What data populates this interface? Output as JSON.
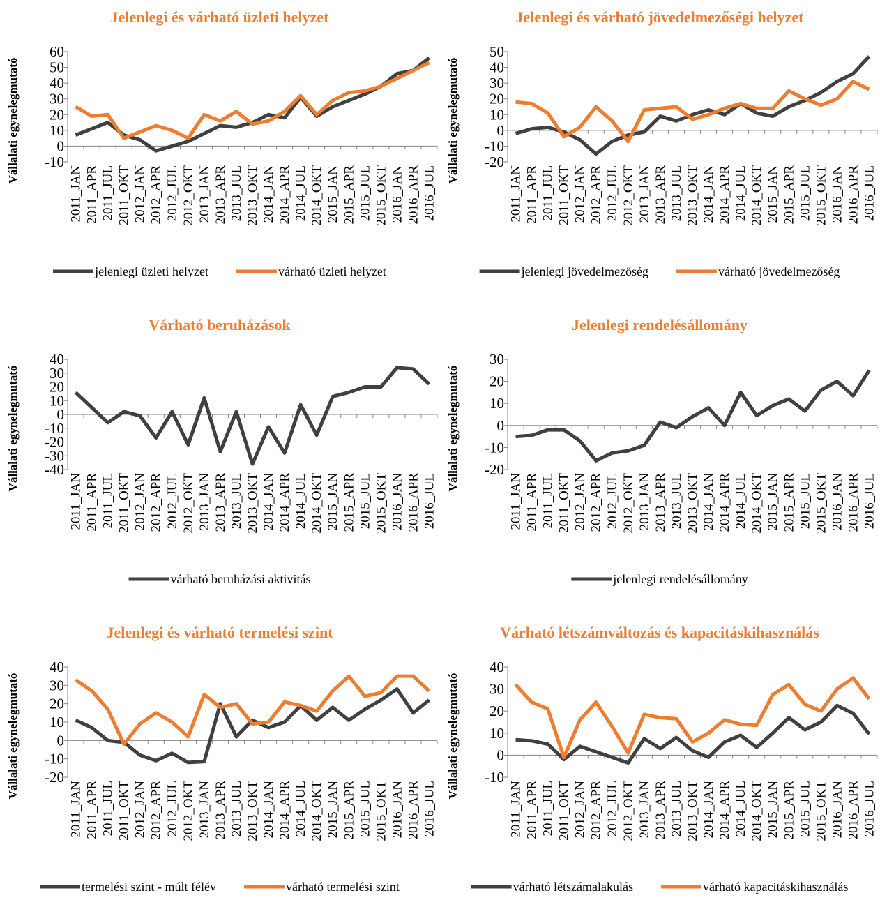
{
  "chart_data": [
    {
      "type": "line",
      "title": "Jelenlegi és várható üzleti helyzet",
      "y_label": "Vállalati egynelegmutató",
      "categories": [
        "2011_JAN",
        "2011_APR",
        "2011_JUL",
        "2011_OKT",
        "2012_JAN",
        "2012_APR",
        "2012_JUL",
        "2012_OKT",
        "2013_JAN",
        "2013_APR",
        "2013_JUL",
        "2013_OKT",
        "2014_JAN",
        "2014_APR",
        "2014_JUL",
        "2014_OKT",
        "2015_JAN",
        "2015_APR",
        "2015_JUL",
        "2015_OKT",
        "2016_JAN",
        "2016_APR",
        "2016_JUL"
      ],
      "series": [
        {
          "name": "jelenlegi üzleti helyzet",
          "color": "#404040",
          "values": [
            7,
            11,
            15,
            7,
            4,
            -3,
            0,
            3,
            8,
            13,
            12,
            15,
            20,
            18,
            31,
            19,
            25,
            29,
            33,
            38,
            46,
            48,
            56
          ]
        },
        {
          "name": "várható üzleti helyzet",
          "color": "#ed7d31",
          "values": [
            25,
            19,
            20,
            5,
            9,
            13,
            10,
            5,
            20,
            16,
            22,
            14,
            16,
            22,
            32,
            20,
            29,
            34,
            35,
            38,
            43,
            48,
            53
          ]
        }
      ],
      "ylim": [
        -10,
        60
      ],
      "yticks": [
        -10,
        0,
        10,
        20,
        30,
        40,
        50,
        60
      ]
    },
    {
      "type": "line",
      "title": "Jelenlegi és várható jövedelmezőségi helyzet",
      "y_label": "Vállalati egynelegmutató",
      "categories": [
        "2011_JAN",
        "2011_APR",
        "2011_JUL",
        "2011_OKT",
        "2012_JAN",
        "2012_APR",
        "2012_JUL",
        "2012_OKT",
        "2013_JAN",
        "2013_APR",
        "2013_JUL",
        "2013_OKT",
        "2014_JAN",
        "2014_APR",
        "2014_JUL",
        "2014_OKT",
        "2015_JAN",
        "2015_APR",
        "2015_JUL",
        "2015_OKT",
        "2016_JAN",
        "2016_APR",
        "2016_JUL"
      ],
      "series": [
        {
          "name": "jelenlegi jövedelmezőség",
          "color": "#404040",
          "values": [
            -2,
            1,
            2,
            -1,
            -6,
            -15,
            -7,
            -3,
            -1,
            9,
            6,
            10,
            13,
            10,
            17,
            11,
            9,
            15,
            19,
            24,
            31,
            36,
            47
          ]
        },
        {
          "name": "várható jövedelmezőség",
          "color": "#ed7d31",
          "values": [
            18,
            17,
            11,
            -4,
            2,
            15,
            6,
            -7,
            13,
            14,
            15,
            7,
            10,
            14,
            17,
            14,
            14,
            25,
            20,
            16,
            20,
            31,
            26
          ]
        }
      ],
      "ylim": [
        -20,
        50
      ],
      "yticks": [
        -20,
        -10,
        0,
        10,
        20,
        30,
        40,
        50
      ]
    },
    {
      "type": "line",
      "title": "Várható beruházások",
      "y_label": "Vállalati egynelegmutató",
      "categories": [
        "2011_JAN",
        "2011_APR",
        "2011_JUL",
        "2011_OKT",
        "2012_JAN",
        "2012_APR",
        "2012_JUL",
        "2012_OKT",
        "2013_JAN",
        "2013_APR",
        "2013_JUL",
        "2013_OKT",
        "2014_JAN",
        "2014_APR",
        "2014_JUL",
        "2014_OKT",
        "2015_JAN",
        "2015_APR",
        "2015_JUL",
        "2015_OKT",
        "2016_JAN",
        "2016_APR",
        "2016_JUL"
      ],
      "series": [
        {
          "name": "várható beruházási aktivitás",
          "color": "#404040",
          "values": [
            16,
            5,
            -6,
            2,
            -1,
            -17,
            2,
            -22,
            12,
            -27,
            2,
            -36,
            -9,
            -28,
            7,
            -15,
            13,
            16,
            20,
            20,
            34,
            33,
            22
          ]
        }
      ],
      "ylim": [
        -40,
        40
      ],
      "yticks": [
        -40,
        -30,
        -20,
        -10,
        0,
        10,
        20,
        30,
        40
      ]
    },
    {
      "type": "line",
      "title": "Jelenlegi rendelésállomány",
      "y_label": "Vállalati egynelegmutató",
      "categories": [
        "2011_JAN",
        "2011_APR",
        "2011_JUL",
        "2011_OKT",
        "2012_JAN",
        "2012_APR",
        "2012_JUL",
        "2012_OKT",
        "2013_JAN",
        "2013_APR",
        "2013_JUL",
        "2013_OKT",
        "2014_JAN",
        "2014_APR",
        "2014_JUL",
        "2014_OKT",
        "2015_JAN",
        "2015_APR",
        "2015_JUL",
        "2015_OKT",
        "2016_JAN",
        "2016_APR",
        "2016_JUL"
      ],
      "series": [
        {
          "name": "jelenlegi rendelésállomány",
          "color": "#404040",
          "values": [
            -5,
            -4.5,
            -2,
            -2,
            -7,
            -16,
            -12.5,
            -11.5,
            -9,
            1.5,
            -1,
            4,
            8,
            0,
            15,
            4.5,
            9,
            12,
            6.5,
            16,
            20,
            13.5,
            25
          ]
        }
      ],
      "ylim": [
        -20,
        30
      ],
      "yticks": [
        -20,
        -10,
        0,
        10,
        20,
        30
      ]
    },
    {
      "type": "line",
      "title": "Jelenlegi és várható termelési szint",
      "y_label": "Vállalati egynelegmutató",
      "categories": [
        "2011_JAN",
        "2011_APR",
        "2011_JUL",
        "2011_OKT",
        "2012_JAN",
        "2012_APR",
        "2012_JUL",
        "2012_OKT",
        "2013_JAN",
        "2013_APR",
        "2013_JUL",
        "2013_OKT",
        "2014_JAN",
        "2014_APR",
        "2014_JUL",
        "2014_OKT",
        "2015_JAN",
        "2015_APR",
        "2015_JUL",
        "2015_OKT",
        "2016_JAN",
        "2016_APR",
        "2016_JUL"
      ],
      "series": [
        {
          "name": "termelési szint - múlt félév",
          "color": "#404040",
          "values": [
            11,
            7,
            0,
            -1,
            -8,
            -11,
            -7,
            -12,
            -11.5,
            20,
            2,
            11,
            7,
            10,
            19,
            11,
            18,
            11,
            17,
            22,
            28,
            15,
            22
          ]
        },
        {
          "name": "várható termelési szint",
          "color": "#ed7d31",
          "values": [
            33,
            27,
            17,
            -2,
            9,
            15,
            10,
            2,
            25,
            18,
            20,
            9,
            10,
            21,
            19,
            16,
            27,
            35,
            24,
            26,
            35,
            35,
            27
          ]
        }
      ],
      "ylim": [
        -20,
        40
      ],
      "yticks": [
        -20,
        -10,
        0,
        10,
        20,
        30,
        40
      ]
    },
    {
      "type": "line",
      "title": "Várható létszámváltozás és kapacitáskihasználás",
      "y_label": "Vállalati egynelegmutató",
      "categories": [
        "2011_JAN",
        "2011_APR",
        "2011_JUL",
        "2011_OKT",
        "2012_JAN",
        "2012_APR",
        "2012_JUL",
        "2012_OKT",
        "2013_JAN",
        "2013_APR",
        "2013_JUL",
        "2013_OKT",
        "2014_JAN",
        "2014_APR",
        "2014_JUL",
        "2014_OKT",
        "2015_JAN",
        "2015_APR",
        "2015_JUL",
        "2015_OKT",
        "2016_JAN",
        "2016_APR",
        "2016_JUL"
      ],
      "series": [
        {
          "name": "várható létszámalakulás",
          "color": "#404040",
          "values": [
            7,
            6.5,
            5,
            -2,
            4,
            1.5,
            -1,
            -3.5,
            7.5,
            3,
            8,
            2,
            -1,
            6,
            9,
            3.5,
            10,
            17,
            11.5,
            15,
            22.5,
            19,
            9.5
          ]
        },
        {
          "name": "várható kapacitáskihasználás",
          "color": "#ed7d31",
          "values": [
            32,
            24,
            21,
            -1,
            16,
            24,
            13,
            1,
            18.5,
            17,
            16.5,
            6,
            10,
            16,
            14,
            13.5,
            27.5,
            32,
            23,
            20,
            30,
            35,
            25.5
          ]
        }
      ],
      "ylim": [
        -10,
        40
      ],
      "yticks": [
        -10,
        0,
        10,
        20,
        30,
        40
      ]
    }
  ]
}
